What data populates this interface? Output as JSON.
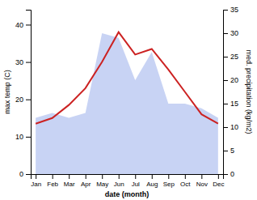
{
  "chart_data": {
    "type": "line",
    "categories": [
      "Jan",
      "Feb",
      "Mar",
      "Apr",
      "May",
      "Jun",
      "Jul",
      "Aug",
      "Sep",
      "Oct",
      "Nov",
      "Dec"
    ],
    "series": [
      {
        "type": "area",
        "axis": "y2",
        "color": "#aabbee",
        "values": [
          12,
          13,
          12,
          13,
          30,
          29,
          20,
          26,
          15,
          15,
          14,
          12
        ]
      },
      {
        "type": "line",
        "color": "#cc2222",
        "values": [
          13.5,
          15.0,
          18.5,
          23.0,
          30.0,
          38.0,
          32.0,
          33.5,
          28.0,
          22.0,
          16.0,
          13.5
        ]
      }
    ],
    "ylim": [
      0,
      44
    ],
    "yticks": [
      0,
      10,
      20,
      30,
      40
    ],
    "y2lim": [
      0,
      35
    ],
    "y2ticks": [
      0,
      5,
      10,
      15,
      20,
      25,
      30,
      35
    ],
    "ylabel": "max temp (C)",
    "y2label": "med. precipitation (kg/m2)",
    "xlabel": "date (month)",
    "grid": false
  }
}
